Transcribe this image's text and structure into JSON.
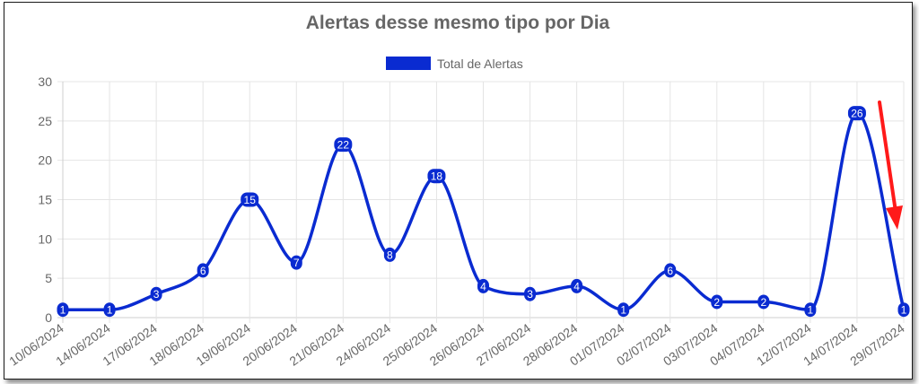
{
  "chart_data": {
    "type": "line",
    "title": "Alertas desse mesmo tipo por Dia",
    "xlabel": "",
    "ylabel": "",
    "categories": [
      "10/06/2024",
      "14/06/2024",
      "17/06/2024",
      "18/06/2024",
      "19/06/2024",
      "20/06/2024",
      "21/06/2024",
      "24/06/2024",
      "25/06/2024",
      "26/06/2024",
      "27/06/2024",
      "28/06/2024",
      "01/07/2024",
      "02/07/2024",
      "03/07/2024",
      "04/07/2024",
      "12/07/2024",
      "14/07/2024",
      "29/07/2024"
    ],
    "series": [
      {
        "name": "Total de Alertas",
        "values": [
          1,
          1,
          3,
          6,
          15,
          7,
          22,
          8,
          18,
          4,
          3,
          4,
          1,
          6,
          2,
          2,
          1,
          26,
          1
        ],
        "color": "#0a2bd1"
      }
    ],
    "ylim": [
      0,
      30
    ],
    "yticks": [
      0,
      5,
      10,
      15,
      20,
      25,
      30
    ],
    "grid": true,
    "legend_position": "top-center",
    "data_labels": true,
    "annotation": {
      "type": "arrow",
      "color": "#ff1a1a",
      "points_to": "29/07/2024"
    }
  }
}
